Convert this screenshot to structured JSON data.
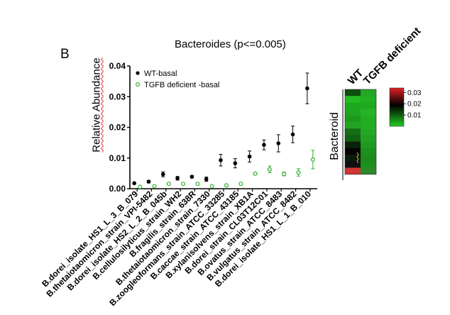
{
  "panel_label": "B",
  "chart_data": {
    "type": "scatter",
    "title": "Bacteroides (p<=0.005)",
    "ylabel": "Relative Abundance",
    "xlabel": "",
    "ylim": [
      0,
      0.04
    ],
    "yticks": [
      "0.00",
      "0.01",
      "0.02",
      "0.03",
      "0.04"
    ],
    "ytick_values": [
      0,
      0.01,
      0.02,
      0.03,
      0.04
    ],
    "legend_position": "top-left",
    "categories": [
      "B.dorei_isolate_HS1_L_3_B_079",
      "B.thetaiotaomicron_strain_VPI-5482",
      "B.dorei_isolate_HS2_L_2_B_045b",
      "B.cellulosilyticus_strain_WH2",
      "B.fragilis_strain_638R",
      "B.thetaiotaomicron_strain_7330",
      "B.zoogleoformans_strain_ATCC_33285",
      "B.caccae_strain_ATCC_43185",
      "B.xylanisolvens_strain_XB1A",
      "B.dorei_strain_CL03T12C01",
      "B.ovatus_strain_ATCC_8483",
      "B.vulgatus_strain_ATCC_8482",
      "B.dorei_isolate_HS1_L_1_B_010"
    ],
    "series": [
      {
        "name": "WT-basal",
        "color": "#000000",
        "values": [
          0.0018,
          0.0023,
          0.0047,
          0.0034,
          0.0039,
          0.0031,
          0.0093,
          0.0083,
          0.0105,
          0.0143,
          0.0148,
          0.0177,
          0.0327
        ],
        "errors": [
          0.0002,
          0.0004,
          0.0008,
          0.0006,
          0.0004,
          0.0007,
          0.0019,
          0.0015,
          0.0018,
          0.0016,
          0.0028,
          0.0027,
          0.005
        ]
      },
      {
        "name": "TGFB deficient -basal",
        "color": "#2fae2f",
        "values": [
          0.0006,
          0.0008,
          0.0016,
          0.0016,
          0.0016,
          0.0008,
          0.0011,
          0.0016,
          0.0049,
          0.0063,
          0.0048,
          0.0053,
          0.0095
        ],
        "errors": [
          0.0001,
          0.0001,
          0.0002,
          0.0002,
          0.0002,
          0.0001,
          0.0002,
          0.0003,
          0.0004,
          0.0011,
          0.0006,
          0.0012,
          0.003
        ]
      }
    ]
  },
  "heatmap": {
    "col_labels": [
      "WT",
      "TGFB deficient"
    ],
    "row_label": "Bacteroid",
    "colorbar": {
      "ticks": [
        "0.03",
        "0.02",
        "0.01"
      ],
      "tick_values": [
        0.03,
        0.02,
        0.01
      ],
      "colors": {
        "high": "#e02020",
        "mid": "#000000",
        "low": "#22cc22"
      }
    },
    "cells": [
      [
        "#0f4d0f",
        "#22a822"
      ],
      [
        "#22bb22",
        "#20b020"
      ],
      [
        "#1ea81e",
        "#20a820"
      ],
      [
        "#1fa51f",
        "#25b425"
      ],
      [
        "#1d9a1d",
        "#22ae22"
      ],
      [
        "#1fa51f",
        "#22ae22"
      ],
      [
        "#176d17",
        "#25a825"
      ],
      [
        "#126012",
        "#22a022"
      ],
      [
        "#0a200a",
        "#1f9a1f"
      ],
      [
        "#050505",
        "#1e901e"
      ],
      [
        "#0a1a0a",
        "#1d8a1d"
      ],
      [
        "#101010",
        "#1c8f1c"
      ],
      [
        "#d23535",
        "#2a8a2a"
      ]
    ]
  }
}
